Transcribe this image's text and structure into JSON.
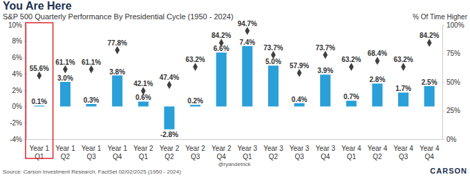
{
  "chart_data": {
    "type": "bar",
    "title": "You Are Here",
    "subtitle": "S&P 500 Quarterly Performance By Presidential Cycle (1950 - 2024)",
    "y2label": "% Of Time Higher",
    "source": "Source: Carson Investment Research, FactSet 02/02/2025 (1950 - 2024)",
    "credit": "@ryandetrick",
    "logo": "CARSON",
    "categories": [
      "Year 1 Q1",
      "Year 1 Q2",
      "Year 1 Q3",
      "Year 1 Q4",
      "Year 2 Q1",
      "Year 2 Q2",
      "Year 2 Q3",
      "Year 2 Q4",
      "Year 3 Q1",
      "Year 3 Q2",
      "Year 3 Q3",
      "Year 3 Q4",
      "Year 4 Q1",
      "Year 4 Q2",
      "Year 4 Q3",
      "Year 4 Q4"
    ],
    "series": [
      {
        "type": "bar",
        "color": "#2a9fd8",
        "values": [
          0.1,
          3.0,
          0.3,
          3.8,
          0.6,
          -2.8,
          0.2,
          6.6,
          7.4,
          5.0,
          0.4,
          3.9,
          0.7,
          2.8,
          1.7,
          2.5
        ],
        "value_labels": [
          "0.1%",
          "3.0%",
          "0.3%",
          "3.8%",
          "0.6%",
          "-2.8%",
          "0.2%",
          "6.6%",
          "7.4%",
          "5.0%",
          "0.4%",
          "3.9%",
          "0.7%",
          "2.8%",
          "1.7%",
          "2.5%"
        ]
      },
      {
        "type": "scatter",
        "marker": "diamond",
        "axis": "y2",
        "color": "#3f3f3f",
        "values": [
          55.6,
          61.1,
          61.1,
          77.8,
          42.1,
          47.4,
          63.2,
          84.2,
          94.7,
          73.7,
          57.9,
          73.7,
          63.2,
          68.4,
          63.2,
          84.2
        ],
        "value_labels": [
          "55.6%",
          "61.1%",
          "61.1%",
          "77.8%",
          "42.1%",
          "47.4%",
          "63.2%",
          "84.2%",
          "94.7%",
          "73.7%",
          "57.9%",
          "73.7%",
          "63.2%",
          "68.4%",
          "63.2%",
          "84.2%"
        ]
      }
    ],
    "ylim": [
      -4,
      10
    ],
    "yticks": [
      {
        "value": -4,
        "label": "-4%"
      },
      {
        "value": -2,
        "label": "-2%"
      },
      {
        "value": 0,
        "label": "0%"
      },
      {
        "value": 2,
        "label": "2%"
      },
      {
        "value": 4,
        "label": "4%"
      },
      {
        "value": 6,
        "label": "6%"
      },
      {
        "value": 8,
        "label": "8%"
      },
      {
        "value": 10,
        "label": "10%"
      }
    ],
    "y2lim": [
      0,
      100
    ],
    "y2ticks": [
      {
        "value": 0,
        "label": "0%"
      },
      {
        "value": 25,
        "label": "25%"
      },
      {
        "value": 50,
        "label": "50%"
      },
      {
        "value": 75,
        "label": "75%"
      },
      {
        "value": 100,
        "label": "100%"
      }
    ],
    "data_labels": true,
    "grid": false
  }
}
